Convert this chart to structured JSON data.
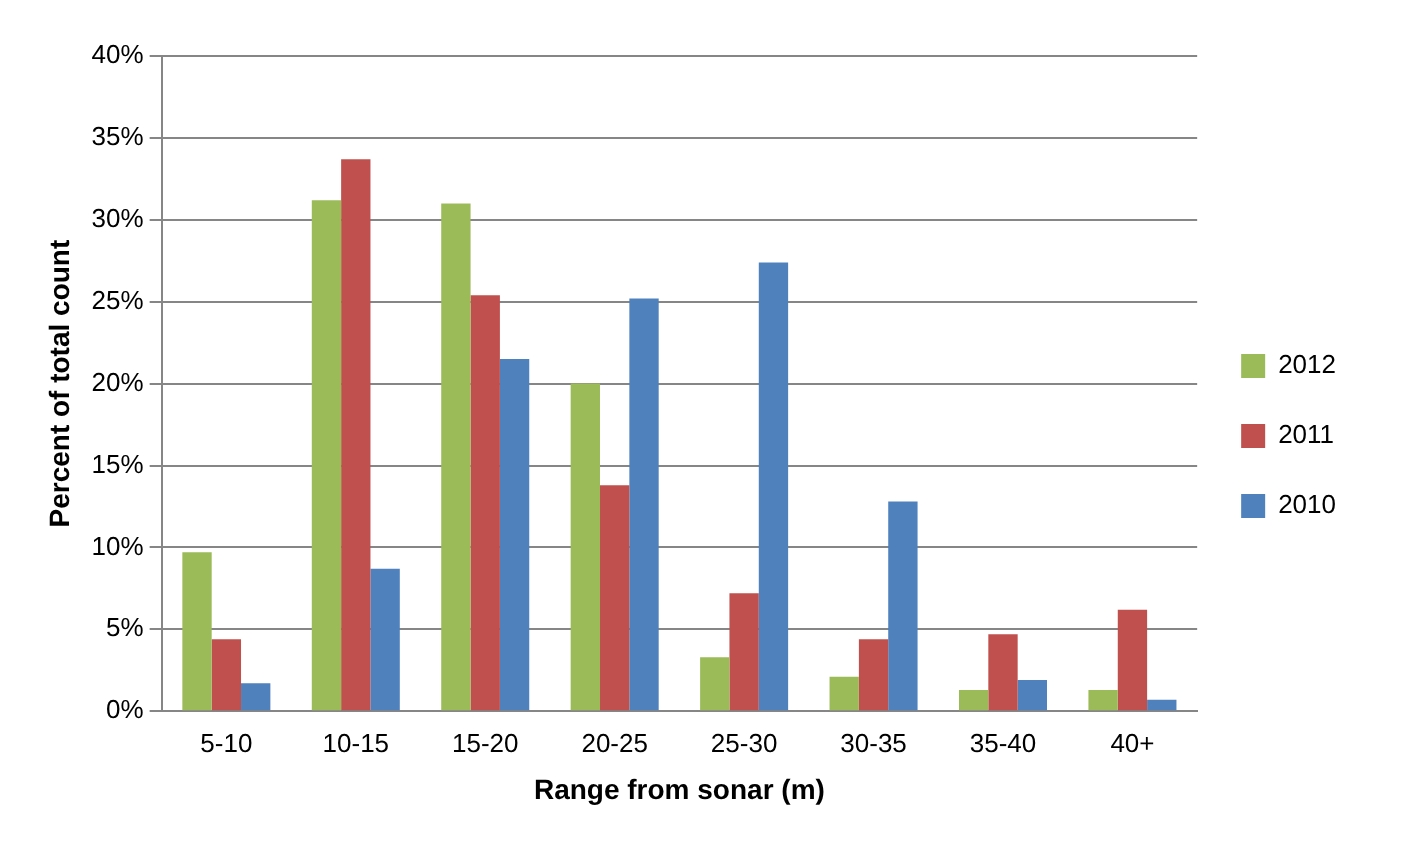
{
  "chart_data": {
    "type": "bar",
    "xlabel": "Range from sonar (m)",
    "ylabel": "Percent of total count",
    "categories": [
      "5-10",
      "10-15",
      "15-20",
      "20-25",
      "25-30",
      "30-35",
      "35-40",
      "40+"
    ],
    "series": [
      {
        "name": "2012",
        "color": "#9bbb59",
        "values": [
          9.7,
          31.2,
          31.0,
          20.0,
          3.3,
          2.1,
          1.3,
          1.3
        ]
      },
      {
        "name": "2011",
        "color": "#c0504d",
        "values": [
          4.4,
          33.7,
          25.4,
          13.8,
          7.2,
          4.4,
          4.7,
          6.2
        ]
      },
      {
        "name": "2010",
        "color": "#4f81bd",
        "values": [
          1.7,
          8.7,
          21.5,
          25.2,
          27.4,
          12.8,
          1.9,
          0.7
        ]
      }
    ],
    "ylim": [
      0,
      40
    ],
    "yticks": [
      {
        "value": 0,
        "label": "0%"
      },
      {
        "value": 5,
        "label": "5%"
      },
      {
        "value": 10,
        "label": "10%"
      },
      {
        "value": 15,
        "label": "15%"
      },
      {
        "value": 20,
        "label": "20%"
      },
      {
        "value": 25,
        "label": "25%"
      },
      {
        "value": 30,
        "label": "30%"
      },
      {
        "value": 35,
        "label": "35%"
      },
      {
        "value": 40,
        "label": "40%"
      }
    ],
    "grid": "y",
    "legend": "right"
  }
}
